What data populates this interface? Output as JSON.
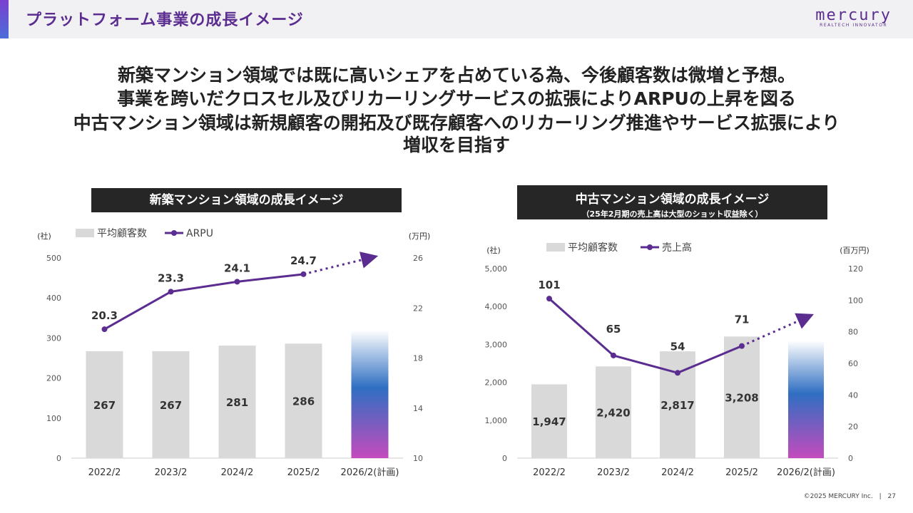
{
  "header": {
    "title": "プラットフォーム事業の成長イメージ",
    "logo_main": "mercury",
    "logo_sub": "REALTECH INNOVATOR"
  },
  "message": {
    "line1": "新築マンション領域では既に高いシェアを占めている為、今後顧客数は微増と予想。",
    "line2": "事業を跨いだクロスセル及びリカーリングサービスの拡張によりARPUの上昇を図る",
    "line3": "中古マンション領域は新規顧客の開拓及び既存顧客へのリカーリング推進やサービス拡張により",
    "line4": "増収を目指す"
  },
  "colors": {
    "accent": "#5b2d91",
    "bar": "#d9d9d9",
    "line": "#5b2d91",
    "gradient_top": "#ffffff",
    "gradient_mid": "#2f6fc2",
    "gradient_bottom": "#c44bbd"
  },
  "chart_data": [
    {
      "type": "bar",
      "title": "新築マンション領域の成長イメージ",
      "subtitle": "",
      "left_unit": "(社)",
      "right_unit": "(万円)",
      "categories": [
        "2022/2",
        "2023/2",
        "2024/2",
        "2025/2",
        "2026/2(計画)"
      ],
      "left_ticks": [
        "0",
        "100",
        "200",
        "300",
        "400",
        "500"
      ],
      "right_ticks": [
        "10",
        "14",
        "18",
        "22",
        "26"
      ],
      "ylim_left": [
        0,
        500
      ],
      "ylim_right": [
        10,
        26
      ],
      "series": [
        {
          "name": "平均顧客数",
          "type": "bar",
          "axis": "left",
          "values": [
            267,
            267,
            281,
            286,
            320
          ],
          "labels": [
            "267",
            "267",
            "281",
            "286",
            ""
          ]
        },
        {
          "name": "ARPU",
          "type": "line",
          "axis": "right",
          "values": [
            20.3,
            23.3,
            24.1,
            24.7,
            26.0
          ],
          "labels": [
            "20.3",
            "23.3",
            "24.1",
            "24.7",
            ""
          ]
        }
      ],
      "legend": "top-left"
    },
    {
      "type": "bar",
      "title": "中古マンション領域の成長イメージ",
      "subtitle": "（25年2月期の売上高は大型のショット収益除く）",
      "left_unit": "(社)",
      "right_unit": "(百万円)",
      "categories": [
        "2022/2",
        "2023/2",
        "2024/2",
        "2025/2",
        "2026/2(計画)"
      ],
      "left_ticks": [
        "0",
        "1,000",
        "2,000",
        "3,000",
        "4,000",
        "5,000"
      ],
      "right_ticks": [
        "0",
        "20",
        "40",
        "60",
        "80",
        "100",
        "120"
      ],
      "ylim_left": [
        0,
        5000
      ],
      "ylim_right": [
        0,
        120
      ],
      "series": [
        {
          "name": "平均顧客数",
          "type": "bar",
          "axis": "left",
          "values": [
            1947,
            2420,
            2817,
            3208,
            3100
          ],
          "labels": [
            "1,947",
            "2,420",
            "2,817",
            "3,208",
            ""
          ]
        },
        {
          "name": "売上高",
          "type": "line",
          "axis": "right",
          "values": [
            101,
            65,
            54,
            71,
            89
          ],
          "labels": [
            "101",
            "65",
            "54",
            "71",
            ""
          ]
        }
      ],
      "legend": "top-left"
    }
  ],
  "footer": {
    "copyright": "©2025 MERCURY Inc.",
    "separator": "|",
    "page": "27"
  }
}
